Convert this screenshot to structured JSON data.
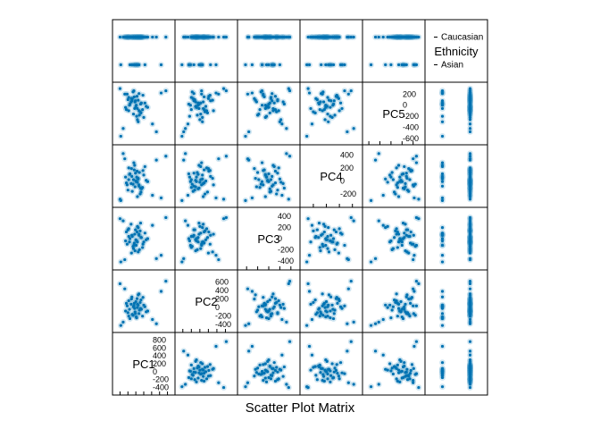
{
  "chart_data": {
    "type": "scatter",
    "variant": "scatter-plot-matrix",
    "title": "",
    "xlabel": "Scatter Plot Matrix",
    "ylabel": "",
    "grid": false,
    "point_color": "#0072b2",
    "variables": [
      {
        "name": "PC1",
        "label": "PC1",
        "range": [
          -500,
          900
        ],
        "ticks": [
          -400,
          -200,
          0,
          200,
          400,
          600,
          800
        ]
      },
      {
        "name": "PC2",
        "label": "PC2",
        "range": [
          -500,
          800
        ],
        "ticks": [
          -400,
          -200,
          0,
          200,
          400,
          600
        ]
      },
      {
        "name": "PC3",
        "label": "PC3",
        "range": [
          -500,
          500
        ],
        "ticks": [
          -400,
          -200,
          0,
          200,
          400
        ]
      },
      {
        "name": "PC4",
        "label": "PC4",
        "range": [
          -350,
          500
        ],
        "ticks": [
          -200,
          0,
          200,
          400
        ]
      },
      {
        "name": "PC5",
        "label": "PC5",
        "range": [
          -650,
          350
        ],
        "ticks": [
          -600,
          -400,
          -200,
          0,
          200
        ]
      },
      {
        "name": "Ethnicity",
        "label": "Ethnicity",
        "categorical": true,
        "levels": [
          "Asian",
          "Caucasian"
        ],
        "range": [
          0.5,
          2.5
        ]
      }
    ],
    "observations": [
      {
        "PC1": -120,
        "PC2": 80,
        "PC3": 260,
        "PC4": -40,
        "PC5": 60,
        "Ethnicity": "Caucasian"
      },
      {
        "PC1": 30,
        "PC2": 210,
        "PC3": 120,
        "PC4": 150,
        "PC5": 160,
        "Ethnicity": "Caucasian"
      },
      {
        "PC1": -260,
        "PC2": -80,
        "PC3": -40,
        "PC4": 60,
        "PC5": -40,
        "Ethnicity": "Caucasian"
      },
      {
        "PC1": 80,
        "PC2": -140,
        "PC3": 60,
        "PC4": -80,
        "PC5": 210,
        "Ethnicity": "Asian"
      },
      {
        "PC1": -60,
        "PC2": 20,
        "PC3": -180,
        "PC4": 20,
        "PC5": -160,
        "Ethnicity": "Caucasian"
      },
      {
        "PC1": 140,
        "PC2": -40,
        "PC3": 20,
        "PC4": -120,
        "PC5": 40,
        "Ethnicity": "Caucasian"
      },
      {
        "PC1": -180,
        "PC2": 160,
        "PC3": 180,
        "PC4": 200,
        "PC5": -100,
        "Ethnicity": "Caucasian"
      },
      {
        "PC1": 10,
        "PC2": -220,
        "PC3": -120,
        "PC4": -10,
        "PC5": 0,
        "Ethnicity": "Asian"
      },
      {
        "PC1": 200,
        "PC2": 60,
        "PC3": -60,
        "PC4": 90,
        "PC5": -220,
        "Ethnicity": "Caucasian"
      },
      {
        "PC1": -90,
        "PC2": -160,
        "PC3": 40,
        "PC4": -160,
        "PC5": 120,
        "Ethnicity": "Caucasian"
      },
      {
        "PC1": 60,
        "PC2": 300,
        "PC3": -240,
        "PC4": 40,
        "PC5": 90,
        "Ethnicity": "Caucasian"
      },
      {
        "PC1": -30,
        "PC2": -20,
        "PC3": 80,
        "PC4": 240,
        "PC5": -60,
        "Ethnicity": "Asian"
      },
      {
        "PC1": 260,
        "PC2": -100,
        "PC3": -20,
        "PC4": 10,
        "PC5": -20,
        "Ethnicity": "Caucasian"
      },
      {
        "PC1": -220,
        "PC2": 40,
        "PC3": -100,
        "PC4": -60,
        "PC5": 200,
        "Ethnicity": "Caucasian"
      },
      {
        "PC1": 110,
        "PC2": 120,
        "PC3": 140,
        "PC4": -200,
        "PC5": -120,
        "Ethnicity": "Caucasian"
      },
      {
        "PC1": -150,
        "PC2": -260,
        "PC3": 0,
        "PC4": 110,
        "PC5": 20,
        "Ethnicity": "Asian"
      },
      {
        "PC1": 40,
        "PC2": 0,
        "PC3": 220,
        "PC4": -20,
        "PC5": -260,
        "Ethnicity": "Caucasian"
      },
      {
        "PC1": -40,
        "PC2": 100,
        "PC3": -80,
        "PC4": 170,
        "PC5": 150,
        "Ethnicity": "Caucasian"
      },
      {
        "PC1": 170,
        "PC2": -200,
        "PC3": -160,
        "PC4": -100,
        "PC5": -80,
        "Ethnicity": "Caucasian"
      },
      {
        "PC1": -100,
        "PC2": 250,
        "PC3": 60,
        "PC4": 70,
        "PC5": 80,
        "Ethnicity": "Asian"
      },
      {
        "PC1": 90,
        "PC2": -60,
        "PC3": -200,
        "PC4": 130,
        "PC5": -180,
        "Ethnicity": "Caucasian"
      },
      {
        "PC1": -200,
        "PC2": -120,
        "PC3": 160,
        "PC4": -140,
        "PC5": 100,
        "Ethnicity": "Caucasian"
      },
      {
        "PC1": 0,
        "PC2": 140,
        "PC3": -20,
        "PC4": 0,
        "PC5": -20,
        "Ethnicity": "Caucasian"
      },
      {
        "PC1": 230,
        "PC2": 20,
        "PC3": 100,
        "PC4": 220,
        "PC5": 40,
        "Ethnicity": "Asian"
      },
      {
        "PC1": -70,
        "PC2": -180,
        "PC3": -140,
        "PC4": -50,
        "PC5": 240,
        "Ethnicity": "Caucasian"
      },
      {
        "PC1": 130,
        "PC2": 180,
        "PC3": 20,
        "PC4": -170,
        "PC5": -140,
        "Ethnicity": "Caucasian"
      },
      {
        "PC1": -160,
        "PC2": -40,
        "PC3": -60,
        "PC4": 100,
        "PC5": 0,
        "Ethnicity": "Caucasian"
      },
      {
        "PC1": 60,
        "PC2": 60,
        "PC3": 200,
        "PC4": 30,
        "PC5": -300,
        "Ethnicity": "Asian"
      },
      {
        "PC1": -20,
        "PC2": -100,
        "PC3": -220,
        "PC4": -90,
        "PC5": 60,
        "Ethnicity": "Caucasian"
      },
      {
        "PC1": 180,
        "PC2": 240,
        "PC3": -100,
        "PC4": 160,
        "PC5": 180,
        "Ethnicity": "Caucasian"
      },
      {
        "PC1": -240,
        "PC2": 100,
        "PC3": 120,
        "PC4": -30,
        "PC5": -80,
        "Ethnicity": "Caucasian"
      },
      {
        "PC1": 20,
        "PC2": -240,
        "PC3": -40,
        "PC4": 60,
        "PC5": -200,
        "Ethnicity": "Asian"
      },
      {
        "PC1": 120,
        "PC2": -20,
        "PC3": 280,
        "PC4": -110,
        "PC5": 20,
        "Ethnicity": "Caucasian"
      },
      {
        "PC1": -110,
        "PC2": 200,
        "PC3": -260,
        "PC4": 190,
        "PC5": 120,
        "Ethnicity": "Caucasian"
      },
      {
        "PC1": 300,
        "PC2": -80,
        "PC3": 0,
        "PC4": -10,
        "PC5": -40,
        "Ethnicity": "Caucasian"
      },
      {
        "PC1": -50,
        "PC2": 40,
        "PC3": -120,
        "PC4": 280,
        "PC5": 260,
        "Ethnicity": "Asian"
      },
      {
        "PC1": 80,
        "PC2": 320,
        "PC3": 80,
        "PC4": -60,
        "PC5": -100,
        "Ethnicity": "Caucasian"
      },
      {
        "PC1": -180,
        "PC2": -200,
        "PC3": 40,
        "PC4": 20,
        "PC5": 140,
        "Ethnicity": "Caucasian"
      },
      {
        "PC1": 40,
        "PC2": 80,
        "PC3": -60,
        "PC4": -240,
        "PC5": -60,
        "Ethnicity": "Caucasian"
      },
      {
        "PC1": -10,
        "PC2": -140,
        "PC3": 160,
        "PC4": 120,
        "PC5": 80,
        "Ethnicity": "Caucasian"
      },
      {
        "PC1": 760,
        "PC2": 620,
        "PC3": 380,
        "PC4": 380,
        "PC5": 260,
        "Ethnicity": "Caucasian"
      },
      {
        "PC1": -380,
        "PC2": -420,
        "PC3": -420,
        "PC4": -300,
        "PC5": -560,
        "Ethnicity": "Asian"
      },
      {
        "PC1": 520,
        "PC2": -380,
        "PC3": -360,
        "PC4": 320,
        "PC5": -480,
        "Ethnicity": "Caucasian"
      },
      {
        "PC1": -400,
        "PC2": 560,
        "PC3": 360,
        "PC4": -280,
        "PC5": 300,
        "Ethnicity": "Caucasian"
      },
      {
        "PC1": 640,
        "PC2": 380,
        "PC3": -300,
        "PC4": -260,
        "PC5": 220,
        "Ethnicity": "Asian"
      },
      {
        "PC1": -320,
        "PC2": -340,
        "PC3": 320,
        "PC4": 420,
        "PC5": -420,
        "Ethnicity": "Caucasian"
      },
      {
        "PC1": 420,
        "PC2": -280,
        "PC3": 240,
        "PC4": -220,
        "PC5": -340,
        "Ethnicity": "Caucasian"
      },
      {
        "PC1": -280,
        "PC2": 440,
        "PC3": -380,
        "PC4": 340,
        "PC5": 200,
        "Ethnicity": "Caucasian"
      }
    ]
  }
}
